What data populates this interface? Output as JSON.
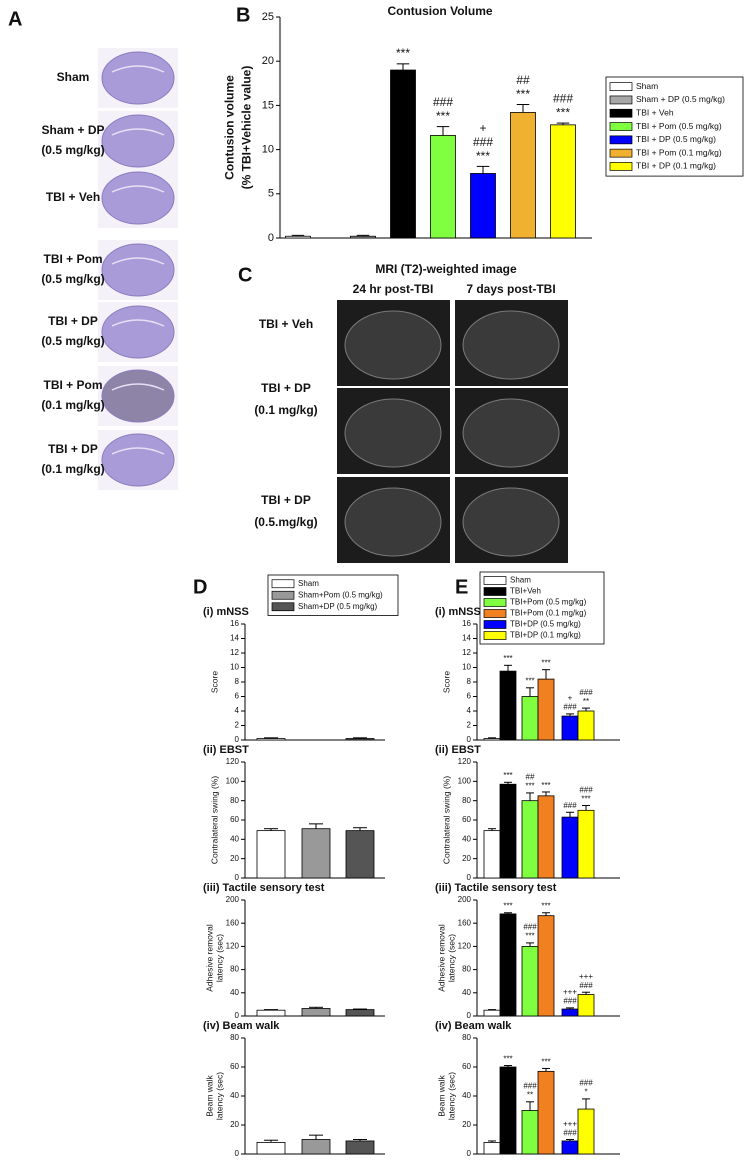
{
  "panel_a": {
    "label": "A",
    "rows": [
      [
        "Sham"
      ],
      [
        "Sham + DP",
        "(0.5 mg/kg)"
      ],
      [
        "TBI + Veh"
      ],
      [
        "TBI + Pom",
        "(0.5 mg/kg)"
      ],
      [
        "TBI + DP",
        "(0.5 mg/kg)"
      ],
      [
        "TBI + Pom",
        "(0.1 mg/kg)"
      ],
      [
        "TBI + DP",
        "(0.1 mg/kg)"
      ]
    ]
  },
  "panel_c": {
    "label": "C",
    "title": "MRI (T2)-weighted image",
    "columns": [
      "24 hr post-TBI",
      "7 days post-TBI"
    ],
    "rows": [
      [
        "TBI + Veh"
      ],
      [
        "TBI + DP",
        "(0.1 mg/kg)"
      ],
      [
        "TBI + DP",
        "(0.5.mg/kg)"
      ]
    ]
  },
  "chart_data": [
    {
      "type": "bar",
      "panel_label": "B",
      "title": "Contusion Volume",
      "ylabel": [
        "Contusion volume",
        "(% TBI+Vehicle value)"
      ],
      "categories": [
        "Sham",
        "Sham + DP (0.5 mg/kg)",
        "TBI + Veh",
        "TBI + Pom (0.5 mg/kg)",
        "TBI + DP (0.5 mg/kg)",
        "TBI + Pom (0.1 mg/kg)",
        "TBI + DP (0.1 mg/kg)"
      ],
      "colors": [
        "#ffffff",
        "#a6a6a6",
        "#000000",
        "#80ff40",
        "#0000ff",
        "#f0b030",
        "#ffff00"
      ],
      "values": [
        0.2,
        0.2,
        19,
        11.6,
        7.3,
        14.2,
        12.8
      ],
      "errors": [
        0.1,
        0.1,
        0.7,
        1.0,
        0.8,
        0.9,
        0.2
      ],
      "annotations": [
        [],
        [],
        [
          "***"
        ],
        [
          "###",
          "***"
        ],
        [
          "+",
          "###",
          "***"
        ],
        [
          "##",
          "***"
        ],
        [
          "###",
          "***"
        ]
      ],
      "ylim": [
        0,
        25
      ],
      "yticks": [
        0,
        5,
        10,
        15,
        20,
        25
      ]
    },
    {
      "type": "bar",
      "panel_label": "D",
      "categories": [
        "Sham",
        "Sham+Pom (0.5 mg/kg)",
        "Sham+DP (0.5 mg/kg)"
      ],
      "colors": [
        "#ffffff",
        "#999999",
        "#555555"
      ],
      "panels": [
        {
          "title": "(i)  mNSS",
          "ylabel": [
            "Score"
          ],
          "ylim": [
            0,
            16
          ],
          "yticks": [
            0,
            2,
            4,
            6,
            8,
            10,
            12,
            14,
            16
          ],
          "values": [
            0.2,
            0,
            0.2
          ],
          "errors": [
            0.1,
            0,
            0.1
          ]
        },
        {
          "title": "(ii)  EBST",
          "ylabel": [
            "Contralateral swing (%)"
          ],
          "ylim": [
            0,
            120
          ],
          "yticks": [
            0,
            20,
            40,
            60,
            80,
            100,
            120
          ],
          "values": [
            49,
            51,
            49
          ],
          "errors": [
            2,
            5,
            3
          ]
        },
        {
          "title": "(iii)  Tactile sensory test",
          "ylabel": [
            "Adhesive removal",
            "latency (sec)"
          ],
          "ylim": [
            0,
            200
          ],
          "yticks": [
            0,
            40,
            80,
            120,
            160,
            200
          ],
          "values": [
            10,
            13,
            11
          ],
          "errors": [
            1,
            2,
            1
          ]
        },
        {
          "title": "(iv)  Beam walk",
          "ylabel": [
            "Beam walk",
            "latency (sec)"
          ],
          "ylim": [
            0,
            80
          ],
          "yticks": [
            0,
            20,
            40,
            60,
            80
          ],
          "values": [
            8,
            10,
            9
          ],
          "errors": [
            1.5,
            3,
            1
          ]
        }
      ]
    },
    {
      "type": "bar",
      "panel_label": "E",
      "categories": [
        "Sham",
        "TBI+Veh",
        "TBI+Pom (0.5 mg/kg)",
        "TBI+Pom (0.1 mg/kg)",
        "TBI+DP (0.5 mg/kg)",
        "TBI+DP (0.1 mg/kg)"
      ],
      "colors": [
        "#ffffff",
        "#000000",
        "#80ff40",
        "#f08020",
        "#0000ff",
        "#ffff00"
      ],
      "panels": [
        {
          "title": "(i)  mNSS",
          "ylabel": [
            "Score"
          ],
          "ylim": [
            0,
            16
          ],
          "yticks": [
            0,
            2,
            4,
            6,
            8,
            10,
            12,
            14,
            16
          ],
          "values": [
            0.2,
            9.5,
            6,
            8.4,
            3.3,
            4.0
          ],
          "errors": [
            0.1,
            0.8,
            1.2,
            1.3,
            0.3,
            0.4
          ],
          "annotations": [
            [],
            [
              "***"
            ],
            [
              "***"
            ],
            [
              "***"
            ],
            [
              "+",
              "###"
            ],
            [
              "###",
              "**"
            ]
          ]
        },
        {
          "title": "(ii)  EBST",
          "ylabel": [
            "Contralateral swing (%)"
          ],
          "ylim": [
            0,
            120
          ],
          "yticks": [
            0,
            20,
            40,
            60,
            80,
            100,
            120
          ],
          "values": [
            49,
            97,
            80,
            85,
            63,
            70
          ],
          "errors": [
            2,
            2,
            8,
            4,
            5,
            5
          ],
          "annotations": [
            [],
            [
              "***"
            ],
            [
              "##",
              "***"
            ],
            [
              "***"
            ],
            [
              "###"
            ],
            [
              "###",
              "***"
            ]
          ]
        },
        {
          "title": "(iii)  Tactile sensory test",
          "ylabel": [
            "Adhesive removal",
            "latency (sec)"
          ],
          "ylim": [
            0,
            200
          ],
          "yticks": [
            0,
            40,
            80,
            120,
            160,
            200
          ],
          "values": [
            10,
            176,
            120,
            173,
            12,
            37
          ],
          "errors": [
            1,
            2,
            6,
            5,
            2,
            4
          ],
          "annotations": [
            [],
            [
              "***"
            ],
            [
              "###",
              "***"
            ],
            [
              "***"
            ],
            [
              "+++",
              "###"
            ],
            [
              "+++",
              "###"
            ]
          ]
        },
        {
          "title": "(iv)  Beam walk",
          "ylabel": [
            "Beam walk",
            "latency (sec)"
          ],
          "ylim": [
            0,
            80
          ],
          "yticks": [
            0,
            20,
            40,
            60,
            80
          ],
          "values": [
            8,
            60,
            30,
            57,
            9,
            31
          ],
          "errors": [
            1,
            1,
            6,
            2,
            1,
            7
          ],
          "annotations": [
            [],
            [
              "***"
            ],
            [
              "###",
              "**"
            ],
            [
              "***"
            ],
            [
              "+++",
              "###"
            ],
            [
              "###",
              "*"
            ]
          ]
        }
      ]
    }
  ]
}
